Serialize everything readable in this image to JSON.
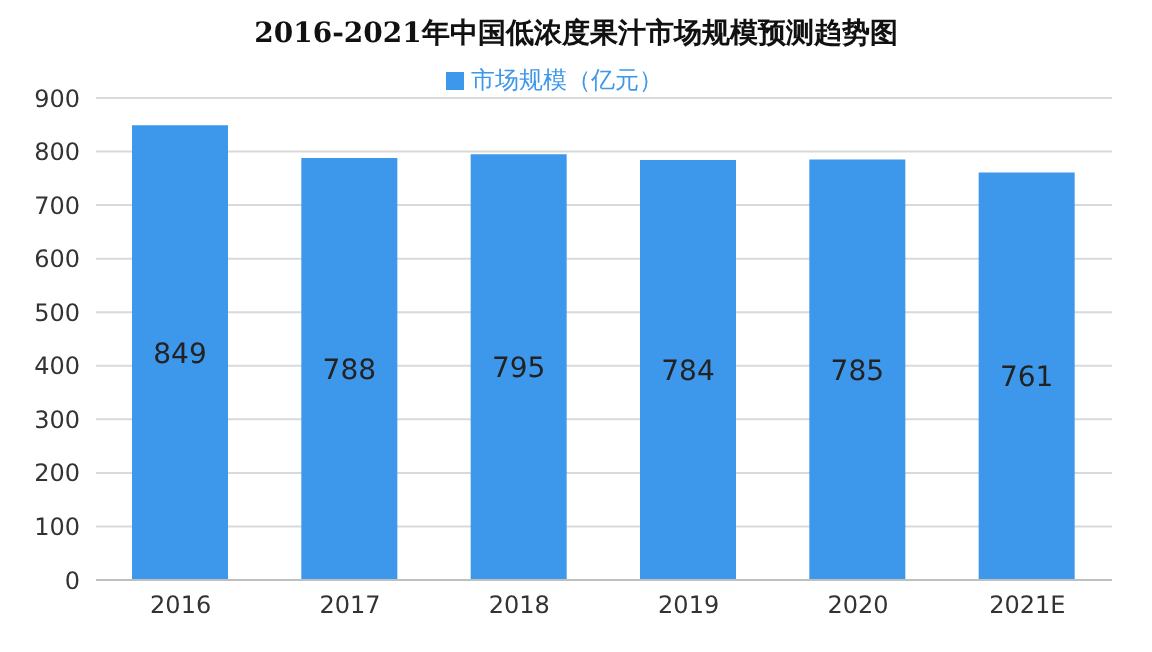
{
  "chart_data": {
    "type": "bar",
    "title": "2016-2021年中国低浓度果汁市场规模预测趋势图",
    "categories": [
      "2016",
      "2017",
      "2018",
      "2019",
      "2020",
      "2021E"
    ],
    "series": [
      {
        "name": "市场规模（亿元）",
        "color": "#3d97ea",
        "values": [
          849,
          788,
          795,
          784,
          785,
          761
        ]
      }
    ],
    "ylim": [
      0,
      900
    ],
    "yticks": [
      0,
      100,
      200,
      300,
      400,
      500,
      600,
      700,
      800,
      900
    ],
    "grid": "y",
    "legend": "top",
    "data_labels": true
  }
}
